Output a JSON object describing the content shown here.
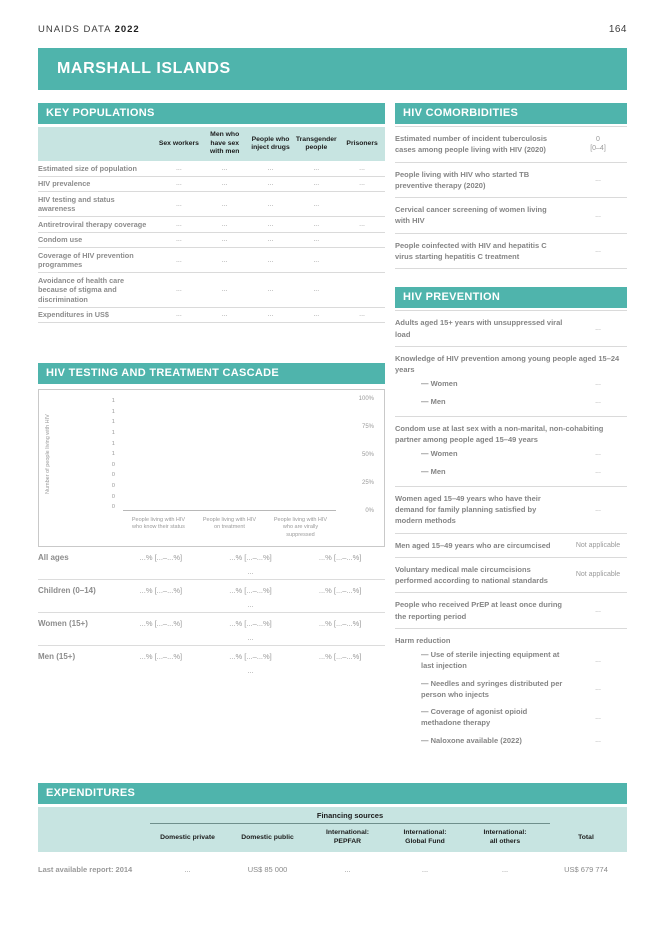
{
  "page": {
    "header_left_regular": "UNAIDS DATA ",
    "header_left_bold": "2022",
    "page_number": "164",
    "country": "MARSHALL ISLANDS"
  },
  "colors": {
    "teal": "#4fb4ac",
    "light_teal": "#c7e4e1"
  },
  "key_populations": {
    "title": "KEY POPULATIONS",
    "columns": [
      "Sex workers",
      "Men who have sex with men",
      "People who inject drugs",
      "Transgender people",
      "Prisoners"
    ],
    "rows": [
      {
        "label": "Estimated size of population",
        "values": [
          "...",
          "...",
          "...",
          "...",
          "..."
        ]
      },
      {
        "label": "HIV prevalence",
        "values": [
          "...",
          "...",
          "...",
          "...",
          "..."
        ]
      },
      {
        "label": "HIV testing and status awareness",
        "values": [
          "...",
          "...",
          "...",
          "...",
          ""
        ]
      },
      {
        "label": "Antiretroviral therapy coverage",
        "values": [
          "...",
          "...",
          "...",
          "...",
          "..."
        ]
      },
      {
        "label": "Condom use",
        "values": [
          "...",
          "...",
          "...",
          "...",
          ""
        ]
      },
      {
        "label": "Coverage of HIV prevention programmes",
        "values": [
          "...",
          "...",
          "...",
          "...",
          ""
        ]
      },
      {
        "label": "Avoidance of health care because of stigma and discrimination",
        "values": [
          "...",
          "...",
          "...",
          "...",
          ""
        ]
      },
      {
        "label": "Expenditures in US$",
        "values": [
          "...",
          "...",
          "...",
          "...",
          "..."
        ]
      }
    ]
  },
  "cascade": {
    "title": "HIV TESTING AND TREATMENT CASCADE",
    "chart": {
      "type": "bar",
      "y_axis_label": "Number of people living with HIV",
      "y_ticks": [
        "1",
        "1",
        "1",
        "1",
        "1",
        "1",
        "0",
        "0",
        "0",
        "0",
        "0"
      ],
      "pct_labels": [
        "100%",
        "75%",
        "50%",
        "25%",
        "0%"
      ],
      "categories": [
        "People living with HIV who know their status",
        "People living with HIV on treatment",
        "People living with HIV who are virally suppressed"
      ],
      "values": [
        null,
        null,
        null
      ]
    },
    "rows": [
      {
        "label": "All ages",
        "values": [
          "...% [...–...%]",
          "...% [...–...%]",
          "...% [...–...%]"
        ],
        "sub": "..."
      },
      {
        "label": "Children (0–14)",
        "values": [
          "...% [...–...%]",
          "...% [...–...%]",
          "...% [...–...%]"
        ],
        "sub": "..."
      },
      {
        "label": "Women (15+)",
        "values": [
          "...% [...–...%]",
          "...% [...–...%]",
          "...% [...–...%]"
        ],
        "sub": "..."
      },
      {
        "label": "Men (15+)",
        "values": [
          "...% [...–...%]",
          "...% [...–...%]",
          "...% [...–...%]"
        ],
        "sub": "..."
      }
    ]
  },
  "comorbidities": {
    "title": "HIV COMORBIDITIES",
    "rows": [
      {
        "label": "Estimated number of incident tuberculosis cases among people living with HIV (2020)",
        "value": "0\n[0–4]"
      },
      {
        "label": "People living with HIV who started TB preventive therapy (2020)",
        "value": "..."
      },
      {
        "label": "Cervical cancer screening of women living with HIV",
        "value": "..."
      },
      {
        "label": "People coinfected with HIV and hepatitis C virus starting hepatitis C treatment",
        "value": "..."
      }
    ]
  },
  "prevention": {
    "title": "HIV PREVENTION",
    "rows": [
      {
        "label": "Adults aged 15+ years with unsuppressed viral load",
        "value": "..."
      },
      {
        "label": "Knowledge of HIV prevention among young people aged 15–24 years",
        "subs": [
          {
            "label": "— Women",
            "value": "..."
          },
          {
            "label": "— Men",
            "value": "..."
          }
        ]
      },
      {
        "label": "Condom use at last sex with a non-marital, non-cohabiting partner among people aged 15–49 years",
        "subs": [
          {
            "label": "— Women",
            "value": "..."
          },
          {
            "label": "— Men",
            "value": "..."
          }
        ]
      },
      {
        "label": "Women aged 15–49 years who have their demand for family planning satisfied by modern methods",
        "value": "..."
      },
      {
        "label": "Men aged 15–49 years who are circumcised",
        "value": "Not applicable"
      },
      {
        "label": "Voluntary medical male circumcisions performed according to national standards",
        "value": "Not applicable"
      },
      {
        "label": "People who received PrEP at least once during the reporting period",
        "value": "..."
      },
      {
        "label": "Harm reduction",
        "subs": [
          {
            "label": "— Use of sterile injecting equipment at last injection",
            "value": "..."
          },
          {
            "label": "— Needles and syringes distributed per person who injects",
            "value": "..."
          },
          {
            "label": "— Coverage of agonist opioid methadone therapy",
            "value": "..."
          },
          {
            "label": "— Naloxone available (2022)",
            "value": "..."
          }
        ]
      }
    ]
  },
  "expenditures": {
    "title": "EXPENDITURES",
    "financing_sources_label": "Financing sources",
    "columns": [
      "Domestic private",
      "Domestic public",
      "International:\nPEPFAR",
      "International:\nGlobal Fund",
      "International:\nall others",
      "Total"
    ],
    "row_label": "Last available report: 2014",
    "values": [
      "...",
      "US$ 85 000",
      "...",
      "...",
      "...",
      "US$ 679 774"
    ]
  }
}
